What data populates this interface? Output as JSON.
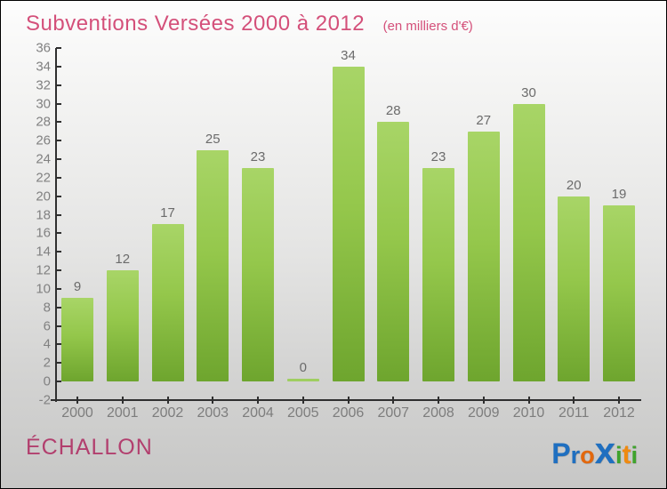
{
  "header": {
    "title": "Subventions Versées 2000 à 2012",
    "subtitle": "(en milliers d'€)"
  },
  "chart_data": {
    "type": "bar",
    "title": "Subventions Versées 2000 à 2012",
    "subtitle": "(en milliers d'€)",
    "categories": [
      "2000",
      "2001",
      "2002",
      "2003",
      "2004",
      "2005",
      "2006",
      "2007",
      "2008",
      "2009",
      "2010",
      "2011",
      "2012"
    ],
    "values": [
      9,
      12,
      17,
      25,
      23,
      0,
      34,
      28,
      23,
      27,
      30,
      20,
      19
    ],
    "xlabel": "",
    "ylabel": "",
    "ylim": [
      -2,
      36
    ],
    "ytick_step": 2,
    "grid": false,
    "legend": false,
    "bar_color_top": "#a8d567",
    "bar_color_bottom": "#6ea52e",
    "zero_bar_color": "#9fce60",
    "axis_color": "#2f2f2f",
    "tick_label_color": "#7d7d7d",
    "value_label_color": "#6b6b6b"
  },
  "footer": {
    "commune": "ÉCHALLON",
    "logo_letters": [
      {
        "char": "P",
        "color": "#1f6fc0",
        "size": 32
      },
      {
        "char": "r",
        "color": "#1f6fc0",
        "size": 27
      },
      {
        "char": "o",
        "color": "#e3680d",
        "size": 27
      },
      {
        "char": "x",
        "color": "#1f6fc0",
        "size": 42
      },
      {
        "char": "i",
        "color": "#3fa32d",
        "size": 27
      },
      {
        "char": "t",
        "color": "#ef8a10",
        "size": 30
      },
      {
        "char": "i",
        "color": "#3fa32d",
        "size": 27
      }
    ]
  },
  "colors": {
    "title_pink": "#d4507a",
    "commune_pink": "#b23f6e",
    "background_top": "#fdfdfd",
    "background_bottom": "#c7c7c6"
  }
}
